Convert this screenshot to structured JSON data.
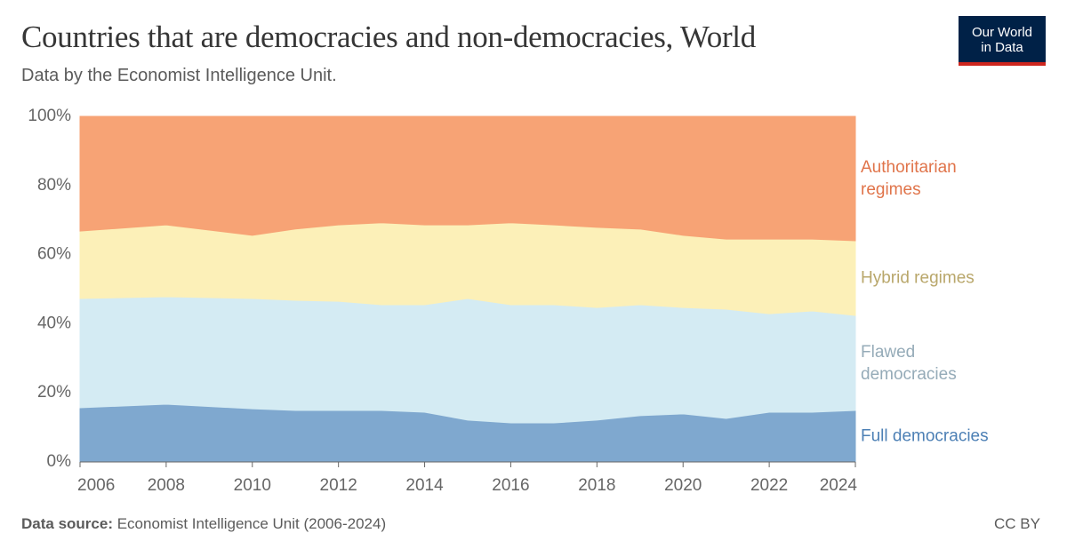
{
  "chart_data": {
    "type": "stacked_area",
    "title": "Countries that are democracies and non-democracies, World",
    "subtitle": "Data by the Economist Intelligence Unit.",
    "x": [
      2006,
      2008,
      2010,
      2011,
      2012,
      2013,
      2014,
      2015,
      2016,
      2017,
      2018,
      2019,
      2020,
      2021,
      2022,
      2023,
      2024
    ],
    "xlim": [
      2006,
      2024
    ],
    "xticks": [
      2006,
      2008,
      2010,
      2012,
      2014,
      2016,
      2018,
      2020,
      2022,
      2024
    ],
    "ylim": [
      0,
      100
    ],
    "yticks": [
      {
        "value": 0,
        "label": "0%"
      },
      {
        "value": 20,
        "label": "20%"
      },
      {
        "value": 40,
        "label": "40%"
      },
      {
        "value": 60,
        "label": "60%"
      },
      {
        "value": 80,
        "label": "80%"
      },
      {
        "value": 100,
        "label": "100%"
      }
    ],
    "grid": true,
    "series": [
      {
        "name": "Full democracies",
        "color": "#7fa8cf",
        "label_color": "#4d80b5",
        "values": [
          15.7,
          16.7,
          15.4,
          14.9,
          14.9,
          14.9,
          14.4,
          12.1,
          11.3,
          11.3,
          12.1,
          13.4,
          13.9,
          12.6,
          14.4,
          14.4,
          14.9
        ]
      },
      {
        "name": "Flawed democracies",
        "color": "#d4ebf3",
        "label_color": "#95abb8",
        "values": [
          31.6,
          31.1,
          31.9,
          31.9,
          31.6,
          30.6,
          31.1,
          35.2,
          34.2,
          34.2,
          32.6,
          32.1,
          30.8,
          31.6,
          28.5,
          29.3,
          27.5
        ]
      },
      {
        "name": "Hybrid regimes",
        "color": "#fcf0b8",
        "label_color": "#b9a76b",
        "values": [
          19.5,
          20.8,
          18.3,
          20.6,
          22.1,
          23.7,
          23.1,
          21.3,
          23.7,
          23.1,
          23.2,
          21.9,
          20.9,
          20.3,
          21.6,
          20.8,
          21.6
        ]
      },
      {
        "name": "Authoritarian regimes",
        "color": "#f7a375",
        "label_color": "#e0744a",
        "values": [
          33.2,
          31.4,
          34.4,
          32.6,
          31.4,
          30.8,
          31.4,
          31.4,
          30.8,
          31.4,
          32.1,
          32.6,
          34.4,
          35.5,
          35.5,
          35.5,
          36.0
        ]
      }
    ],
    "source_label": "Data source:",
    "source": "Economist Intelligence Unit (2006-2024)",
    "license": "CC BY",
    "logo": "Our World in Data"
  }
}
